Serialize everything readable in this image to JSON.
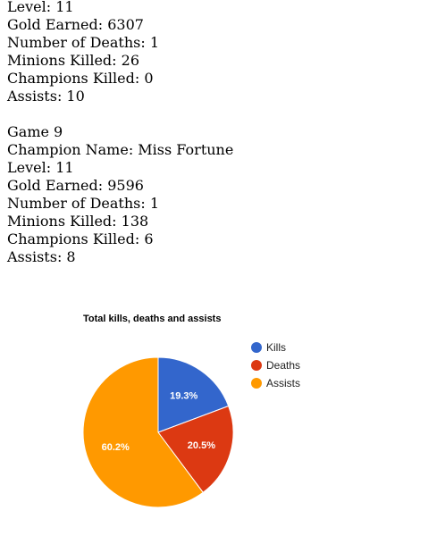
{
  "game_prev": {
    "level": "Level: 11",
    "gold": "Gold Earned: 6307",
    "deaths": "Number of Deaths: 1",
    "minions": "Minions Killed: 26",
    "champions": "Champions Killed: 0",
    "assists": "Assists: 10"
  },
  "game9": {
    "header": "Game 9",
    "champion": "Champion Name: Miss Fortune",
    "level": "Level: 11",
    "gold": "Gold Earned: 9596",
    "deaths": "Number of Deaths: 1",
    "minions": "Minions Killed: 138",
    "champions": "Champions Killed: 6",
    "assists": "Assists: 8"
  },
  "chart_data": {
    "type": "pie",
    "title": "Total kills, deaths and assists",
    "legend_position": "right",
    "slices": [
      {
        "name": "Kills",
        "value": 19.3,
        "label": "19.3%",
        "color": "#3366cc"
      },
      {
        "name": "Deaths",
        "value": 20.5,
        "label": "20.5%",
        "color": "#dc3912"
      },
      {
        "name": "Assists",
        "value": 60.2,
        "label": "60.2%",
        "color": "#ff9900"
      }
    ]
  }
}
